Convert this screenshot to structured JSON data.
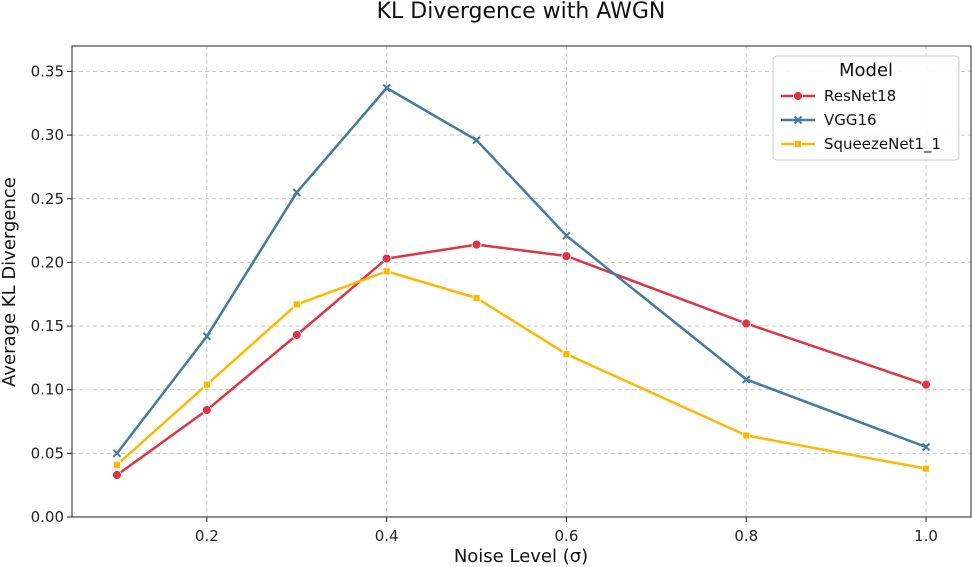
{
  "chart_data": {
    "type": "line",
    "title": "KL Divergence with AWGN",
    "xlabel": "Noise Level (σ)",
    "ylabel": "Average KL Divergence",
    "xlim": [
      0.05,
      1.05
    ],
    "ylim": [
      0.0,
      0.37
    ],
    "xticks": [
      0.2,
      0.4,
      0.6,
      0.8,
      1.0
    ],
    "xtick_labels": [
      "0.2",
      "0.4",
      "0.6",
      "0.8",
      "1.0"
    ],
    "yticks": [
      0.0,
      0.05,
      0.1,
      0.15,
      0.2,
      0.25,
      0.3,
      0.35
    ],
    "ytick_labels": [
      "0.00",
      "0.05",
      "0.10",
      "0.15",
      "0.20",
      "0.25",
      "0.30",
      "0.35"
    ],
    "grid": true,
    "legend": {
      "title": "Model",
      "position": "top-right"
    },
    "x": [
      0.1,
      0.2,
      0.3,
      0.4,
      0.5,
      0.6,
      0.8,
      1.0
    ],
    "series": [
      {
        "name": "ResNet18",
        "color": "#dc3545",
        "marker": "circle",
        "values": [
          0.033,
          0.084,
          0.143,
          0.203,
          0.214,
          0.205,
          0.152,
          0.104
        ]
      },
      {
        "name": "VGG16",
        "color": "#457b9d",
        "marker": "x",
        "values": [
          0.05,
          0.142,
          0.255,
          0.337,
          0.296,
          0.221,
          0.108,
          0.055
        ]
      },
      {
        "name": "SqueezeNet1_1",
        "color": "#ffb703",
        "marker": "square",
        "values": [
          0.041,
          0.104,
          0.167,
          0.193,
          0.172,
          0.128,
          0.064,
          0.038
        ]
      }
    ]
  }
}
